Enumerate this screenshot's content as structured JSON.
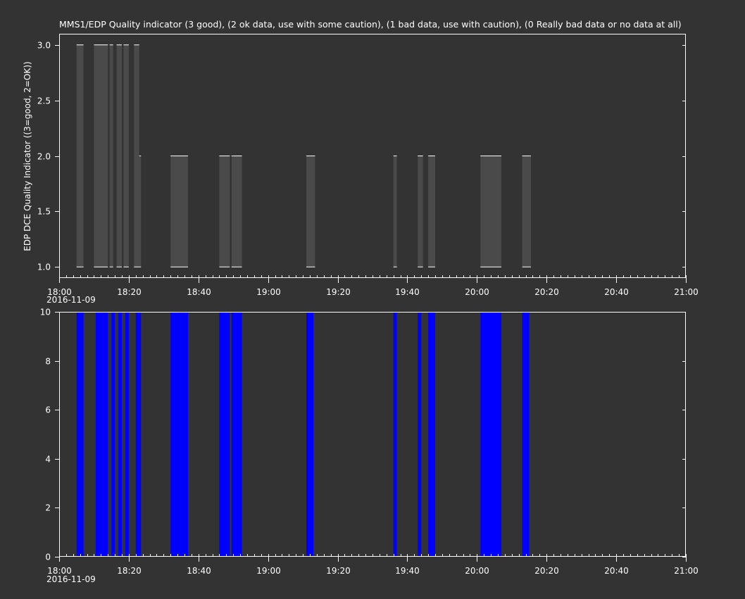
{
  "colors": {
    "background": "#333333",
    "foreground": "#ffffff",
    "top_fill": "#4a4a4a",
    "bottom_fill": "#0000ff"
  },
  "top_panel": {
    "title": "MMS1/EDP  Quality indicator (3 good), (2 ok data, use with some caution), (1 bad data, use with caution), (0 Really bad data or no data at all)",
    "ylabel": "EDP DCE Quality Indicator ((3=good, 2=OK))",
    "date_label": "2016-11-09"
  },
  "bottom_panel": {
    "date_label": "2016-11-09"
  },
  "chart_data": [
    {
      "type": "bar",
      "title": "MMS1/EDP  Quality indicator (3 good), (2 ok data, use with some caution), (1 bad data, use with caution), (0 Really bad data or no data at all)",
      "ylabel": "EDP DCE Quality Indicator ((3=good, 2=OK))",
      "xlabel": "",
      "xlim": [
        "18:00",
        "21:00"
      ],
      "ylim": [
        0.9,
        3.1
      ],
      "x_ticks": [
        "18:00",
        "18:20",
        "18:40",
        "19:00",
        "19:20",
        "19:40",
        "20:00",
        "20:20",
        "20:40",
        "21:00"
      ],
      "y_ticks": [
        "1.0",
        "1.5",
        "2.0",
        "2.5",
        "3.0"
      ],
      "grid": false,
      "segments": [
        {
          "start": "18:05",
          "end": "18:07",
          "low": 1,
          "high": 3
        },
        {
          "start": "18:10",
          "end": "18:14",
          "low": 1,
          "high": 3
        },
        {
          "start": "18:14.5",
          "end": "18:15.5",
          "low": 1,
          "high": 3
        },
        {
          "start": "18:16.5",
          "end": "18:18",
          "low": 1,
          "high": 3
        },
        {
          "start": "18:18.5",
          "end": "18:20",
          "low": 1,
          "high": 3
        },
        {
          "start": "18:21.5",
          "end": "18:23",
          "low": 1,
          "high": 3
        },
        {
          "start": "18:23",
          "end": "18:23.5",
          "low": 1,
          "high": 2
        },
        {
          "start": "18:32",
          "end": "18:37",
          "low": 1,
          "high": 2
        },
        {
          "start": "18:46",
          "end": "18:49",
          "low": 1,
          "high": 2
        },
        {
          "start": "18:49.5",
          "end": "18:52.5",
          "low": 1,
          "high": 2
        },
        {
          "start": "19:11",
          "end": "19:13.5",
          "low": 1,
          "high": 2
        },
        {
          "start": "19:36",
          "end": "19:37",
          "low": 1,
          "high": 2
        },
        {
          "start": "19:43",
          "end": "19:44.5",
          "low": 1,
          "high": 2
        },
        {
          "start": "19:46",
          "end": "19:48",
          "low": 1,
          "high": 2
        },
        {
          "start": "20:01",
          "end": "20:07",
          "low": 1,
          "high": 2
        },
        {
          "start": "20:13",
          "end": "20:15.5",
          "low": 1,
          "high": 2
        }
      ]
    },
    {
      "type": "bar",
      "title": "",
      "xlabel": "",
      "ylabel": "",
      "xlim": [
        "18:00",
        "21:00"
      ],
      "ylim": [
        0,
        10
      ],
      "x_ticks": [
        "18:00",
        "18:20",
        "18:40",
        "19:00",
        "19:20",
        "19:40",
        "20:00",
        "20:20",
        "20:40",
        "21:00"
      ],
      "y_ticks": [
        "0",
        "2",
        "4",
        "6",
        "8",
        "10"
      ],
      "grid": false,
      "segments": [
        {
          "start": "18:05",
          "end": "18:07",
          "low": 0,
          "high": 10
        },
        {
          "start": "18:10.5",
          "end": "18:14",
          "low": 0,
          "high": 10
        },
        {
          "start": "18:15",
          "end": "18:16",
          "low": 0,
          "high": 10
        },
        {
          "start": "18:17",
          "end": "18:18",
          "low": 0,
          "high": 10
        },
        {
          "start": "18:19",
          "end": "18:20",
          "low": 0,
          "high": 10
        },
        {
          "start": "18:22",
          "end": "18:23.5",
          "low": 0,
          "high": 10
        },
        {
          "start": "18:32",
          "end": "18:37",
          "low": 0,
          "high": 10
        },
        {
          "start": "18:46",
          "end": "18:49",
          "low": 0,
          "high": 10
        },
        {
          "start": "18:49.5",
          "end": "18:52.5",
          "low": 0,
          "high": 10
        },
        {
          "start": "19:11",
          "end": "19:13",
          "low": 0,
          "high": 10
        },
        {
          "start": "19:36",
          "end": "19:37",
          "low": 0,
          "high": 10
        },
        {
          "start": "19:43",
          "end": "19:44",
          "low": 0,
          "high": 10
        },
        {
          "start": "19:46",
          "end": "19:48",
          "low": 0,
          "high": 10
        },
        {
          "start": "20:01",
          "end": "20:07",
          "low": 0,
          "high": 10
        },
        {
          "start": "20:13",
          "end": "20:15",
          "low": 0,
          "high": 10
        }
      ]
    }
  ]
}
